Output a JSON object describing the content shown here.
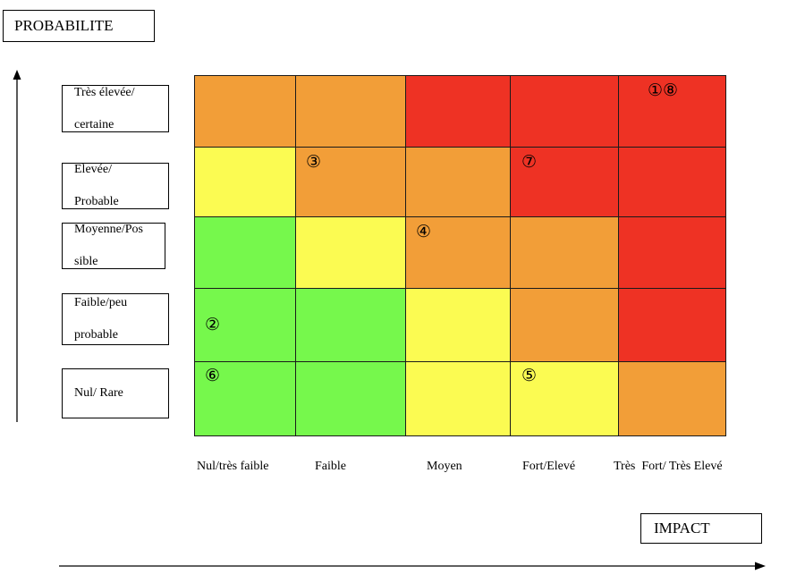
{
  "probability_title": "PROBABILITE",
  "impact_title": "IMPACT",
  "probability_levels": [
    {
      "line1": "Très élevée/",
      "line2": "certaine"
    },
    {
      "line1": "Elevée/",
      "line2": "Probable"
    },
    {
      "line1": "Moyenne/Pos",
      "line2": "sible"
    },
    {
      "line1": "Faible/peu",
      "line2": "probable"
    },
    {
      "line1": "Nul/ Rare",
      "line2": ""
    }
  ],
  "impact_levels": [
    "Nul/très faible",
    "Faible",
    "Moyen",
    "Fort/Elevé",
    "Très  Fort/ Très Elevé"
  ],
  "colors": {
    "red": "#ee3224",
    "orange": "#f29e38",
    "yellow": "#fbfb52",
    "green": "#76f84c"
  },
  "matrix": [
    [
      "orange",
      "orange",
      "red",
      "red",
      "red"
    ],
    [
      "yellow",
      "orange",
      "orange",
      "red",
      "red"
    ],
    [
      "green",
      "yellow",
      "orange",
      "orange",
      "red"
    ],
    [
      "green",
      "green",
      "yellow",
      "orange",
      "red"
    ],
    [
      "green",
      "green",
      "yellow",
      "yellow",
      "orange"
    ]
  ],
  "risk_markers": [
    {
      "label": "①⑧",
      "row": 0,
      "col": 4
    },
    {
      "label": "③",
      "row": 1,
      "col": 1
    },
    {
      "label": "⑦",
      "row": 1,
      "col": 3
    },
    {
      "label": "④",
      "row": 2,
      "col": 2
    },
    {
      "label": "②",
      "row": 3,
      "col": 0
    },
    {
      "label": "⑥",
      "row": 4,
      "col": 0
    },
    {
      "label": "⑤",
      "row": 4,
      "col": 3
    }
  ]
}
